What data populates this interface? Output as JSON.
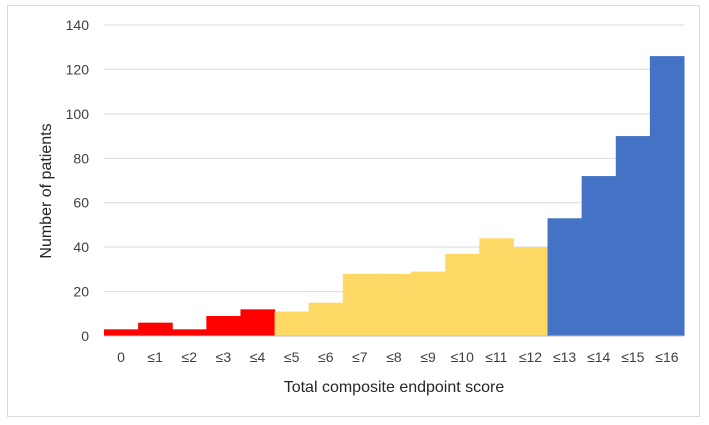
{
  "chart_data": {
    "type": "bar",
    "title": "",
    "xlabel": "Total composite endpoint score",
    "ylabel": "Number of patients",
    "ylim": [
      0,
      140
    ],
    "yticks": [
      0,
      20,
      40,
      60,
      80,
      100,
      120,
      140
    ],
    "grid": true,
    "categories": [
      "0",
      "≤1",
      "≤2",
      "≤3",
      "≤4",
      "≤5",
      "≤6",
      "≤7",
      "≤8",
      "≤9",
      "≤10",
      "≤11",
      "≤12",
      "≤13",
      "≤14",
      "≤15",
      "≤16"
    ],
    "values": [
      3,
      6,
      3,
      9,
      12,
      11,
      15,
      28,
      28,
      29,
      37,
      44,
      40,
      53,
      72,
      90,
      126
    ],
    "colors": [
      "#ff0000",
      "#ff0000",
      "#ff0000",
      "#ff0000",
      "#ff0000",
      "#ffd966",
      "#ffd966",
      "#ffd966",
      "#ffd966",
      "#ffd966",
      "#ffd966",
      "#ffd966",
      "#ffd966",
      "#4472c4",
      "#4472c4",
      "#4472c4",
      "#4472c4"
    ],
    "gridline_color": "#d9d9d9",
    "axis_color": "#bfbfbf"
  }
}
